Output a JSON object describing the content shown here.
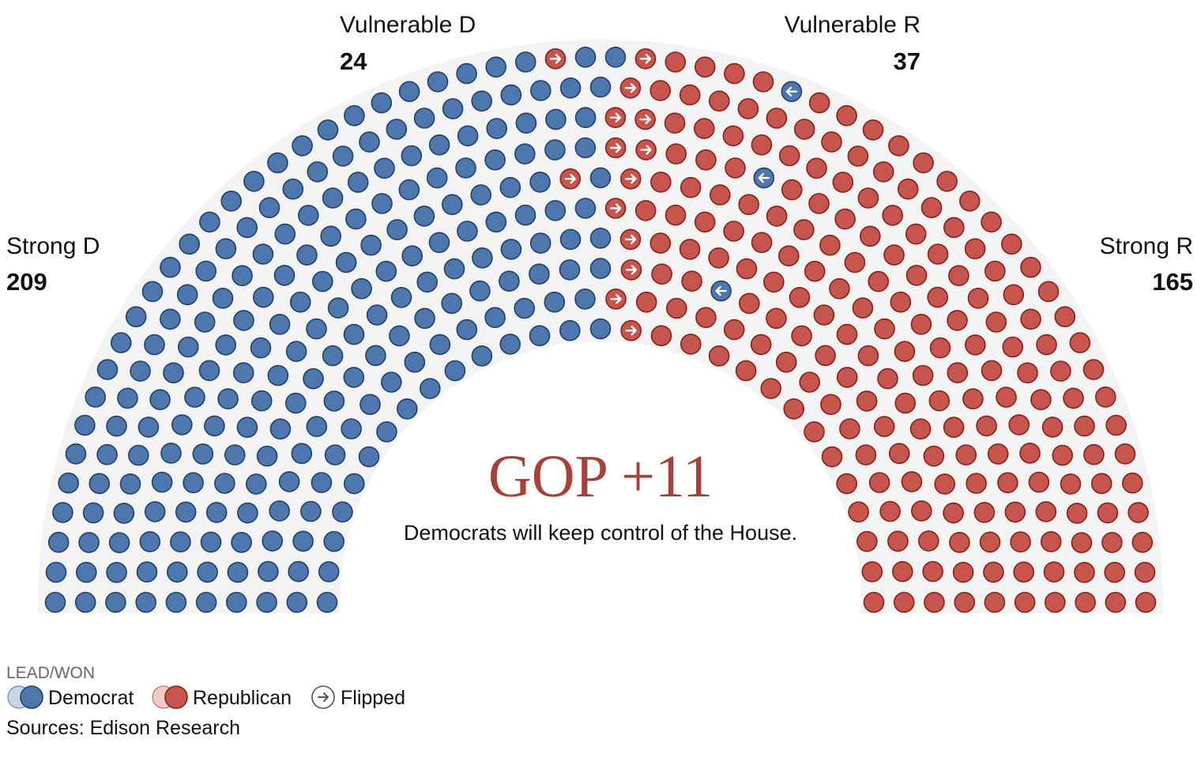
{
  "chart_data": {
    "type": "hemicycle",
    "groups": [
      {
        "name": "Strong D",
        "value": 209,
        "flipped": 2,
        "color": "#4e78ad",
        "flipped_color": "#c6554d"
      },
      {
        "name": "Vulnerable D",
        "value": 24,
        "flipped": 12,
        "color": "#4e78ad",
        "flipped_color": "#c6554d"
      },
      {
        "name": "Vulnerable R",
        "value": 37,
        "flipped": 3,
        "color": "#c6554d",
        "flipped_color": "#4e78ad"
      },
      {
        "name": "Strong R",
        "value": 165,
        "flipped": 0,
        "color": "#c6554d",
        "flipped_color": "#4e78ad"
      }
    ],
    "headline": "GOP +11",
    "subtitle": "Democrats will keep control of the House.",
    "legend": {
      "title": "LEAD/WON",
      "items": [
        "Democrat",
        "Republican",
        "Flipped"
      ]
    },
    "source": "Sources: Edison Research"
  }
}
